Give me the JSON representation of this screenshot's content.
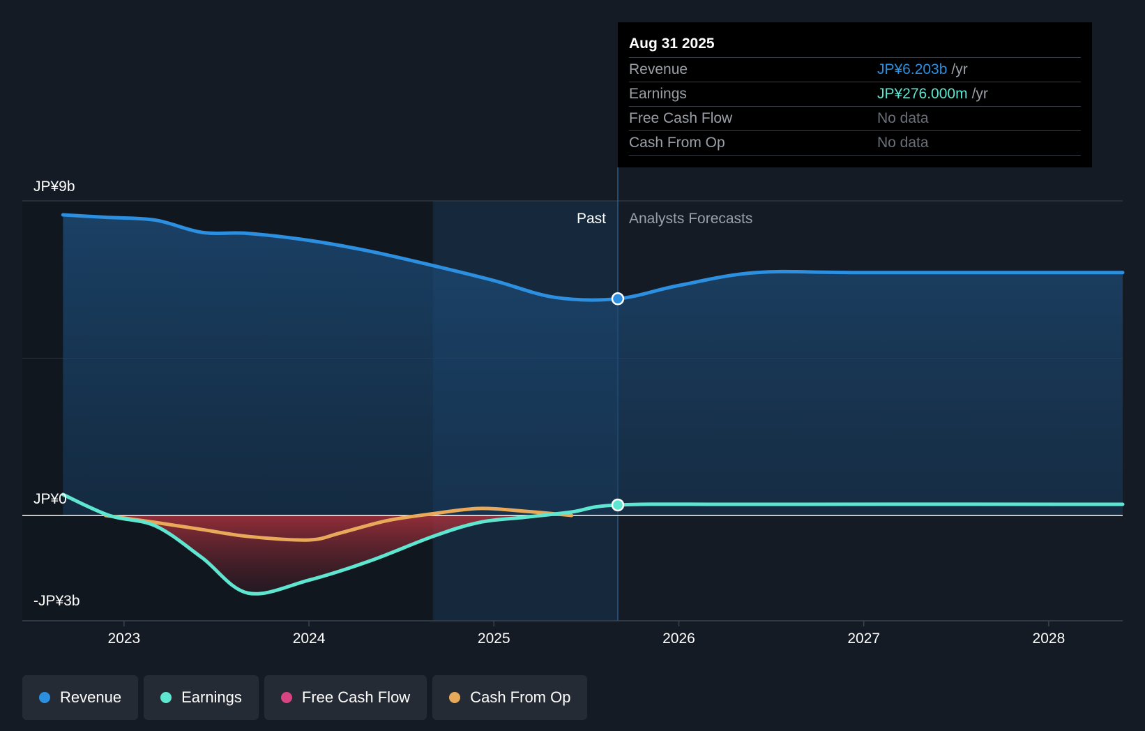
{
  "colors": {
    "background": "#151b24",
    "revenue": "#2d8fe0",
    "earnings": "#5ee6d0",
    "free_cash_flow": "#d6457f",
    "cash_from_op": "#e9a95a"
  },
  "tooltip": {
    "date": "Aug 31 2025",
    "rows": [
      {
        "label": "Revenue",
        "value": "JP¥6.203b",
        "unit": "/yr",
        "color": "#2d8fe0"
      },
      {
        "label": "Earnings",
        "value": "JP¥276.000m",
        "unit": "/yr",
        "color": "#5ee6d0"
      },
      {
        "label": "Free Cash Flow",
        "value": "No data",
        "unit": "",
        "color": "#6b7078"
      },
      {
        "label": "Cash From Op",
        "value": "No data",
        "unit": "",
        "color": "#6b7078"
      }
    ]
  },
  "legend": [
    {
      "label": "Revenue",
      "color": "#2d8fe0"
    },
    {
      "label": "Earnings",
      "color": "#5ee6d0"
    },
    {
      "label": "Free Cash Flow",
      "color": "#d6457f"
    },
    {
      "label": "Cash From Op",
      "color": "#e9a95a"
    }
  ],
  "chart_data": {
    "type": "area",
    "title": "",
    "ylabel": "",
    "xlabel": "",
    "ylim": [
      -3,
      9
    ],
    "xlim": [
      2022.45,
      2028.4
    ],
    "x_ticks": [
      2023,
      2024,
      2025,
      2026,
      2027,
      2028
    ],
    "x_tick_labels": [
      "2023",
      "2024",
      "2025",
      "2026",
      "2027",
      "2028"
    ],
    "y_tick_labels": [
      {
        "value": 9,
        "label": "JP¥9b"
      },
      {
        "value": 0,
        "label": "JP¥0"
      },
      {
        "value": -3,
        "label": "-JP¥3b"
      }
    ],
    "past_label": "Past",
    "forecast_label": "Analysts Forecasts",
    "divider_x": 2025.67,
    "highlight_start_x": 2024.67,
    "series": [
      {
        "name": "Revenue",
        "color": "#2d8fe0",
        "points": [
          [
            2022.67,
            8.6
          ],
          [
            2022.9,
            8.53
          ],
          [
            2023.17,
            8.45
          ],
          [
            2023.42,
            8.1
          ],
          [
            2023.67,
            8.07
          ],
          [
            2024.0,
            7.87
          ],
          [
            2024.33,
            7.56
          ],
          [
            2024.67,
            7.15
          ],
          [
            2025.0,
            6.72
          ],
          [
            2025.33,
            6.24
          ],
          [
            2025.67,
            6.2
          ],
          [
            2026.0,
            6.58
          ],
          [
            2026.42,
            6.95
          ],
          [
            2027.0,
            6.95
          ],
          [
            2028.4,
            6.95
          ]
        ]
      },
      {
        "name": "Earnings",
        "color": "#5ee6d0",
        "points": [
          [
            2022.67,
            0.6
          ],
          [
            2022.92,
            0.0
          ],
          [
            2023.17,
            -0.3
          ],
          [
            2023.42,
            -1.2
          ],
          [
            2023.67,
            -2.22
          ],
          [
            2024.0,
            -1.85
          ],
          [
            2024.33,
            -1.3
          ],
          [
            2024.67,
            -0.6
          ],
          [
            2024.92,
            -0.2
          ],
          [
            2025.17,
            -0.05
          ],
          [
            2025.42,
            0.1
          ],
          [
            2025.67,
            0.3
          ],
          [
            2026.42,
            0.32
          ],
          [
            2028.4,
            0.32
          ]
        ]
      },
      {
        "name": "Cash From Op",
        "color": "#e9a95a",
        "points": [
          [
            2022.9,
            0.0
          ],
          [
            2023.17,
            -0.2
          ],
          [
            2023.42,
            -0.4
          ],
          [
            2023.67,
            -0.6
          ],
          [
            2024.0,
            -0.7
          ],
          [
            2024.17,
            -0.5
          ],
          [
            2024.42,
            -0.15
          ],
          [
            2024.67,
            0.05
          ],
          [
            2024.92,
            0.2
          ],
          [
            2025.17,
            0.12
          ],
          [
            2025.42,
            0.0
          ]
        ]
      },
      {
        "name": "Free Cash Flow",
        "color": "#d6457f",
        "points": []
      }
    ]
  }
}
